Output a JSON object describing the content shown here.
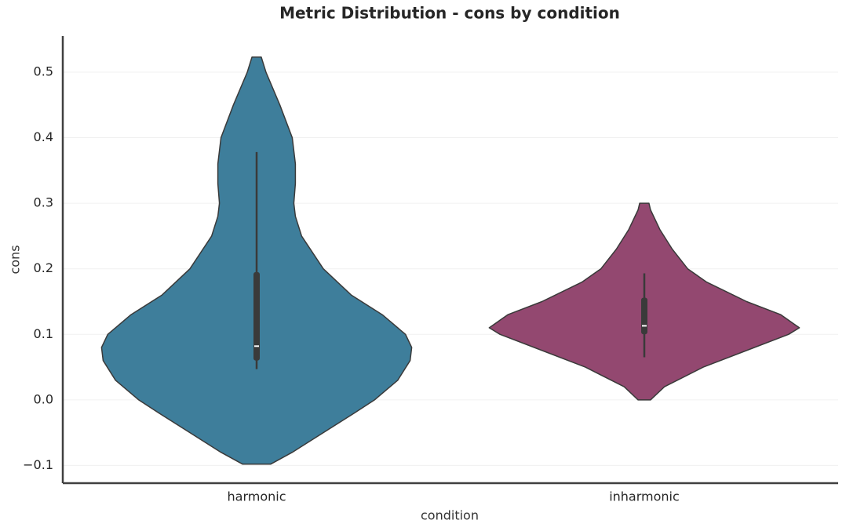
{
  "chart_data": {
    "type": "violin",
    "title": "Metric Distribution - cons by condition",
    "x_label": "condition",
    "y_label": "cons",
    "categories": [
      "harmonic",
      "inharmonic"
    ],
    "ylim": [
      -0.127,
      0.555
    ],
    "yticks": [
      {
        "value": -0.1,
        "label": "−0.1"
      },
      {
        "value": 0,
        "label": "0.0"
      },
      0.1,
      0.2,
      0.3,
      0.4,
      0.5
    ],
    "grid": true,
    "violins": [
      {
        "color": "#3e7e9b",
        "y": [
          -0.098,
          -0.08,
          -0.05,
          -0.02,
          0.0,
          0.03,
          0.06,
          0.08,
          0.1,
          0.13,
          0.16,
          0.2,
          0.25,
          0.28,
          0.3,
          0.33,
          0.36,
          0.4,
          0.45,
          0.5,
          0.523
        ],
        "density": [
          0.09,
          0.23,
          0.43,
          0.63,
          0.76,
          0.91,
          0.99,
          1.0,
          0.96,
          0.81,
          0.61,
          0.43,
          0.29,
          0.25,
          0.24,
          0.25,
          0.25,
          0.23,
          0.15,
          0.06,
          0.03
        ],
        "whisker": [
          0.047,
          0.378
        ],
        "box": [
          0.06,
          0.195
        ],
        "median": 0.082
      },
      {
        "color": "#934870",
        "y": [
          0.0,
          0.02,
          0.05,
          0.08,
          0.1,
          0.11,
          0.13,
          0.15,
          0.18,
          0.2,
          0.23,
          0.26,
          0.29,
          0.3
        ],
        "density": [
          0.04,
          0.13,
          0.38,
          0.71,
          0.93,
          1.0,
          0.88,
          0.66,
          0.4,
          0.28,
          0.18,
          0.1,
          0.04,
          0.03
        ],
        "whisker": [
          0.065,
          0.193
        ],
        "box": [
          0.1,
          0.156
        ],
        "median": 0.113
      }
    ]
  }
}
